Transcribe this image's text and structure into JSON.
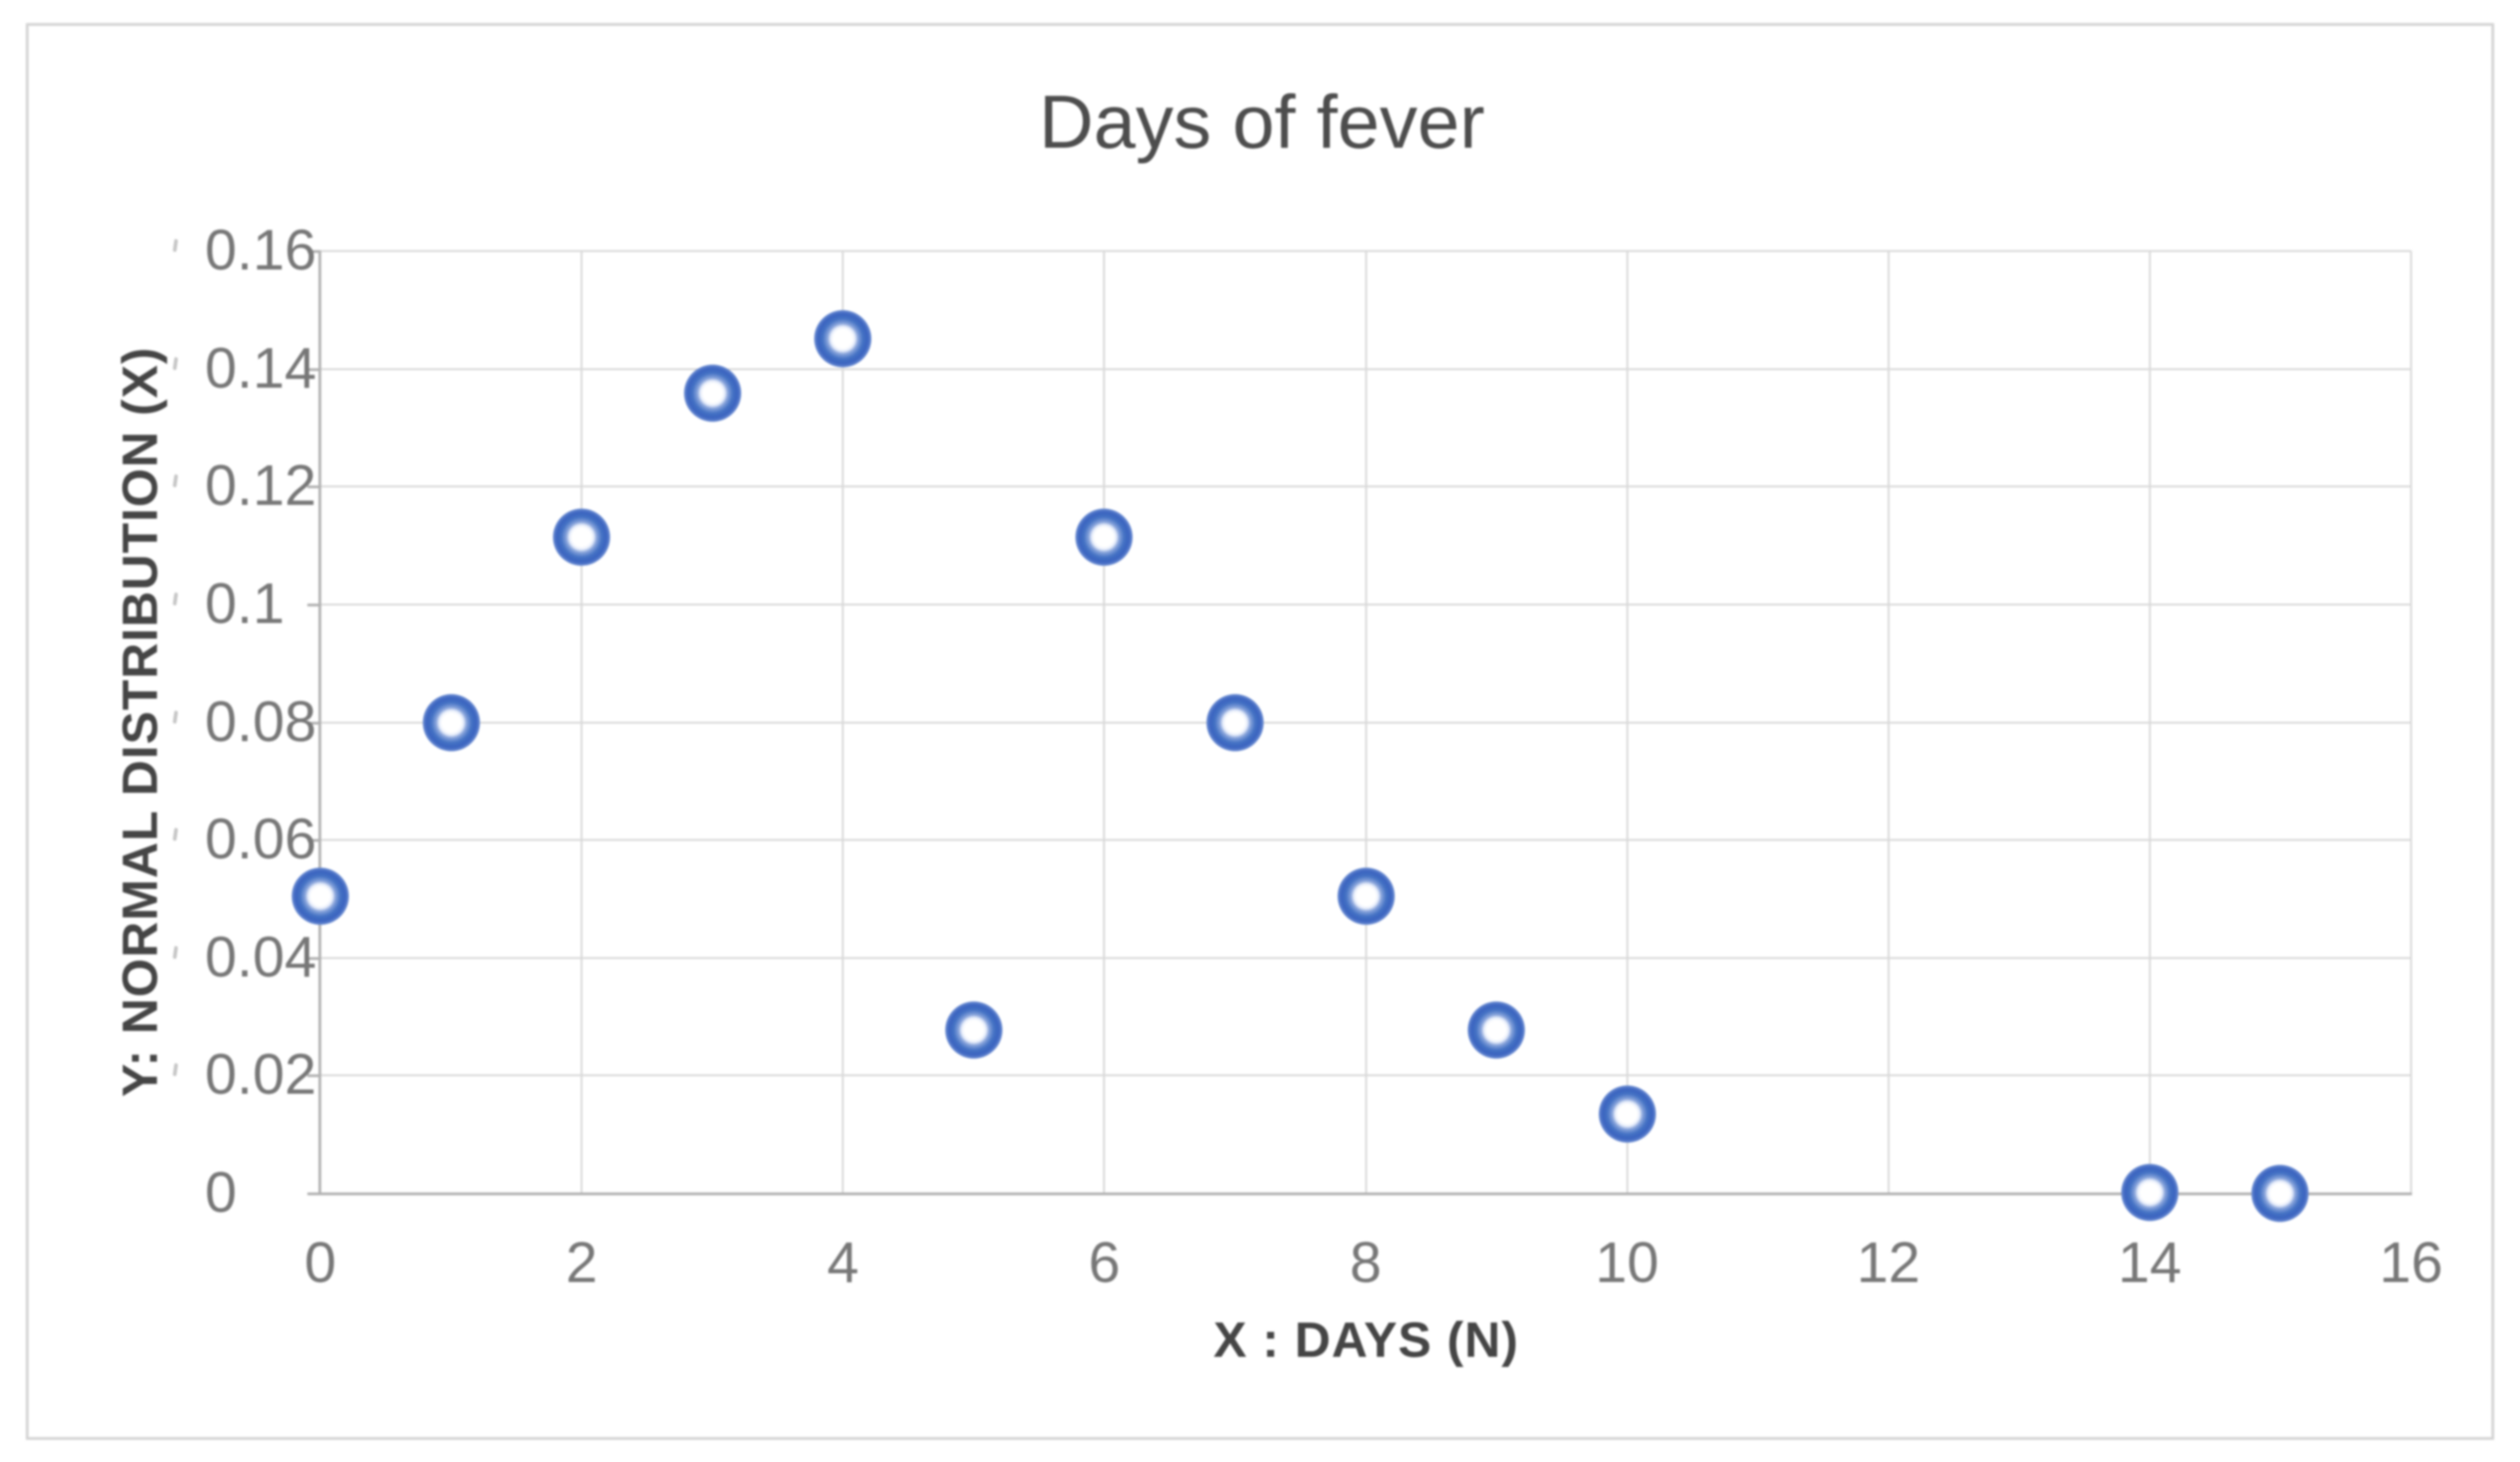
{
  "chart_data": {
    "type": "scatter",
    "title": "Days of fever",
    "xlabel": "X : DAYS (N)",
    "ylabel": "Y: NORMAL DISTRIBUTION (X)",
    "xlim": [
      0,
      16
    ],
    "ylim": [
      0,
      0.16
    ],
    "grid": true,
    "legend": false,
    "marker_color": "#4472c4",
    "x_ticks": [
      {
        "value": 0,
        "label": "0"
      },
      {
        "value": 2,
        "label": "2"
      },
      {
        "value": 4,
        "label": "4"
      },
      {
        "value": 6,
        "label": "6"
      },
      {
        "value": 8,
        "label": "8"
      },
      {
        "value": 10,
        "label": "10"
      },
      {
        "value": 12,
        "label": "12"
      },
      {
        "value": 14,
        "label": "14"
      },
      {
        "value": 16,
        "label": "16"
      }
    ],
    "y_ticks": [
      {
        "value": 0,
        "label": "0"
      },
      {
        "value": 0.02,
        "label": "0.02"
      },
      {
        "value": 0.04,
        "label": "0.04"
      },
      {
        "value": 0.06,
        "label": "0.06"
      },
      {
        "value": 0.08,
        "label": "0.08"
      },
      {
        "value": 0.1,
        "label": "0.1"
      },
      {
        "value": 0.12,
        "label": "0.12"
      },
      {
        "value": 0.14,
        "label": "0.14"
      },
      {
        "value": 0.16,
        "label": "0.16"
      }
    ],
    "points": [
      {
        "x": 0,
        "y": 0.0504
      },
      {
        "x": 1,
        "y": 0.08
      },
      {
        "x": 2,
        "y": 0.1114
      },
      {
        "x": 3,
        "y": 0.1358
      },
      {
        "x": 4,
        "y": 0.1451
      },
      {
        "x": 5,
        "y": 0.0278
      },
      {
        "x": 6,
        "y": 0.1114
      },
      {
        "x": 7,
        "y": 0.08
      },
      {
        "x": 8,
        "y": 0.0504
      },
      {
        "x": 9,
        "y": 0.0278
      },
      {
        "x": 10,
        "y": 0.0134
      },
      {
        "x": 14,
        "y": 0.0002
      },
      {
        "x": 15,
        "y": 5e-05
      }
    ]
  }
}
